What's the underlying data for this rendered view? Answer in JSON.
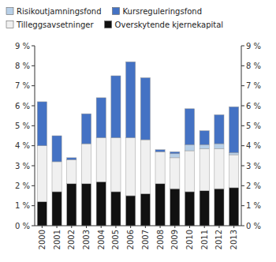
{
  "chart_data": {
    "type": "bar",
    "stacked": true,
    "grid": false,
    "legend": "top",
    "categories": [
      "2000",
      "2001",
      "2002",
      "2003",
      "2004",
      "2005",
      "2006",
      "2007",
      "2008",
      "2009",
      "2010",
      "2011",
      "2012",
      "2013"
    ],
    "series": [
      {
        "name": "Overskytende kjernekapital",
        "color": "#111111",
        "values": [
          1.2,
          1.7,
          2.1,
          2.1,
          2.2,
          1.7,
          1.5,
          1.6,
          2.1,
          1.85,
          1.7,
          1.75,
          1.85,
          1.9
        ]
      },
      {
        "name": "Tilleggsavsetninger",
        "color": "#f0f0f0",
        "values": [
          2.8,
          1.5,
          1.2,
          2.0,
          2.2,
          2.7,
          2.9,
          2.7,
          1.6,
          1.55,
          2.05,
          2.1,
          2.0,
          1.65
        ]
      },
      {
        "name": "Risikoutjamningsfond",
        "color": "#b8d0e8",
        "values": [
          0.0,
          0.0,
          0.0,
          0.0,
          0.0,
          0.0,
          0.0,
          0.0,
          0.0,
          0.2,
          0.3,
          0.2,
          0.25,
          0.1
        ]
      },
      {
        "name": "Kursreguleringsfond",
        "color": "#4472c4",
        "values": [
          2.2,
          1.3,
          0.1,
          1.5,
          2.0,
          3.1,
          3.8,
          3.1,
          0.1,
          0.1,
          1.8,
          0.7,
          1.45,
          2.3
        ]
      }
    ],
    "ylim": [
      0,
      9
    ],
    "yticks": [
      {
        "value": 0,
        "label": "0 %"
      },
      {
        "value": 1,
        "label": "1 %"
      },
      {
        "value": 2,
        "label": "2 %"
      },
      {
        "value": 3,
        "label": "3 %"
      },
      {
        "value": 4,
        "label": "4 %"
      },
      {
        "value": 5,
        "label": "5 %"
      },
      {
        "value": 6,
        "label": "6 %"
      },
      {
        "value": 7,
        "label": "7 %"
      },
      {
        "value": 8,
        "label": "8 %"
      },
      {
        "value": 9,
        "label": "9 %"
      }
    ],
    "y2lim": [
      0,
      9
    ],
    "y2ticks": [
      {
        "value": 0,
        "label": "0 %"
      },
      {
        "value": 1,
        "label": "1 %"
      },
      {
        "value": 2,
        "label": "2 %"
      },
      {
        "value": 3,
        "label": "3 %"
      },
      {
        "value": 4,
        "label": "4 %"
      },
      {
        "value": 5,
        "label": "5 %"
      },
      {
        "value": 6,
        "label": "6 %"
      },
      {
        "value": 7,
        "label": "7 %"
      },
      {
        "value": 8,
        "label": "8 %"
      },
      {
        "value": 9,
        "label": "9 %"
      }
    ]
  }
}
